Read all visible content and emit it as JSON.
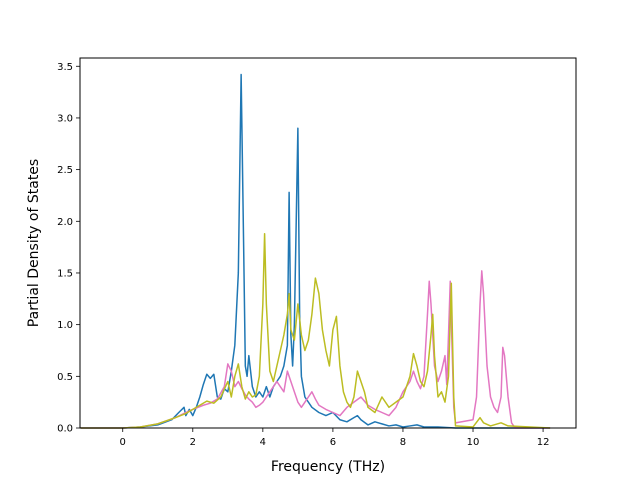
{
  "chart_data": {
    "type": "line",
    "title": "",
    "xlabel": "Frequency (THz)",
    "ylabel": "Partial Density of States",
    "xlim": [
      -1.22,
      12.94
    ],
    "ylim": [
      0,
      3.58
    ],
    "xticks": [
      0,
      2,
      4,
      6,
      8,
      10,
      12
    ],
    "yticks": [
      0.0,
      0.5,
      1.0,
      1.5,
      2.0,
      2.5,
      3.0,
      3.5
    ],
    "xtick_labels": [
      "0",
      "2",
      "4",
      "6",
      "8",
      "10",
      "12"
    ],
    "ytick_labels": [
      "0.0",
      "0.5",
      "1.0",
      "1.5",
      "2.0",
      "2.5",
      "3.0",
      "3.5"
    ],
    "grid": false,
    "legend": false,
    "series": [
      {
        "color": "#1f77b4",
        "points": [
          [
            -1.2,
            0
          ],
          [
            0.0,
            0
          ],
          [
            0.5,
            0.01
          ],
          [
            1.0,
            0.03
          ],
          [
            1.4,
            0.08
          ],
          [
            1.6,
            0.15
          ],
          [
            1.75,
            0.2
          ],
          [
            1.8,
            0.12
          ],
          [
            1.9,
            0.18
          ],
          [
            2.0,
            0.12
          ],
          [
            2.1,
            0.2
          ],
          [
            2.2,
            0.3
          ],
          [
            2.3,
            0.42
          ],
          [
            2.4,
            0.52
          ],
          [
            2.5,
            0.48
          ],
          [
            2.6,
            0.52
          ],
          [
            2.7,
            0.3
          ],
          [
            2.8,
            0.28
          ],
          [
            2.9,
            0.38
          ],
          [
            3.0,
            0.35
          ],
          [
            3.1,
            0.55
          ],
          [
            3.2,
            0.8
          ],
          [
            3.3,
            1.5
          ],
          [
            3.38,
            3.42
          ],
          [
            3.45,
            1.8
          ],
          [
            3.5,
            0.6
          ],
          [
            3.55,
            0.5
          ],
          [
            3.6,
            0.7
          ],
          [
            3.7,
            0.4
          ],
          [
            3.8,
            0.3
          ],
          [
            3.9,
            0.35
          ],
          [
            4.0,
            0.3
          ],
          [
            4.1,
            0.4
          ],
          [
            4.2,
            0.3
          ],
          [
            4.3,
            0.4
          ],
          [
            4.4,
            0.45
          ],
          [
            4.5,
            0.5
          ],
          [
            4.6,
            0.6
          ],
          [
            4.7,
            0.8
          ],
          [
            4.75,
            2.28
          ],
          [
            4.8,
            0.9
          ],
          [
            4.85,
            0.6
          ],
          [
            4.9,
            1.0
          ],
          [
            5.0,
            2.9
          ],
          [
            5.05,
            1.1
          ],
          [
            5.1,
            0.5
          ],
          [
            5.2,
            0.3
          ],
          [
            5.4,
            0.2
          ],
          [
            5.6,
            0.15
          ],
          [
            5.8,
            0.12
          ],
          [
            6.0,
            0.15
          ],
          [
            6.2,
            0.08
          ],
          [
            6.4,
            0.06
          ],
          [
            6.6,
            0.1
          ],
          [
            6.7,
            0.12
          ],
          [
            6.8,
            0.08
          ],
          [
            7.0,
            0.03
          ],
          [
            7.2,
            0.06
          ],
          [
            7.4,
            0.04
          ],
          [
            7.6,
            0.02
          ],
          [
            7.8,
            0.03
          ],
          [
            8.0,
            0.01
          ],
          [
            8.2,
            0.02
          ],
          [
            8.4,
            0.03
          ],
          [
            8.6,
            0.01
          ],
          [
            9.0,
            0.01
          ],
          [
            9.5,
            0
          ],
          [
            10.0,
            0
          ],
          [
            12.2,
            0
          ]
        ]
      },
      {
        "color": "#e377c2",
        "points": [
          [
            -1.2,
            0
          ],
          [
            0.0,
            0
          ],
          [
            0.5,
            0.01
          ],
          [
            1.0,
            0.04
          ],
          [
            1.5,
            0.1
          ],
          [
            1.8,
            0.15
          ],
          [
            2.0,
            0.18
          ],
          [
            2.3,
            0.22
          ],
          [
            2.5,
            0.24
          ],
          [
            2.7,
            0.28
          ],
          [
            2.9,
            0.4
          ],
          [
            3.0,
            0.62
          ],
          [
            3.1,
            0.55
          ],
          [
            3.2,
            0.4
          ],
          [
            3.3,
            0.45
          ],
          [
            3.4,
            0.38
          ],
          [
            3.5,
            0.32
          ],
          [
            3.6,
            0.28
          ],
          [
            3.7,
            0.25
          ],
          [
            3.8,
            0.2
          ],
          [
            3.9,
            0.22
          ],
          [
            4.0,
            0.25
          ],
          [
            4.1,
            0.3
          ],
          [
            4.2,
            0.35
          ],
          [
            4.3,
            0.4
          ],
          [
            4.4,
            0.45
          ],
          [
            4.5,
            0.4
          ],
          [
            4.6,
            0.35
          ],
          [
            4.7,
            0.55
          ],
          [
            4.8,
            0.45
          ],
          [
            4.9,
            0.35
          ],
          [
            5.0,
            0.25
          ],
          [
            5.1,
            0.2
          ],
          [
            5.2,
            0.25
          ],
          [
            5.3,
            0.3
          ],
          [
            5.4,
            0.35
          ],
          [
            5.5,
            0.28
          ],
          [
            5.6,
            0.22
          ],
          [
            5.8,
            0.18
          ],
          [
            6.0,
            0.15
          ],
          [
            6.2,
            0.12
          ],
          [
            6.4,
            0.2
          ],
          [
            6.6,
            0.25
          ],
          [
            6.8,
            0.3
          ],
          [
            7.0,
            0.22
          ],
          [
            7.2,
            0.18
          ],
          [
            7.4,
            0.15
          ],
          [
            7.6,
            0.12
          ],
          [
            7.8,
            0.2
          ],
          [
            8.0,
            0.35
          ],
          [
            8.2,
            0.45
          ],
          [
            8.3,
            0.55
          ],
          [
            8.4,
            0.45
          ],
          [
            8.5,
            0.38
          ],
          [
            8.6,
            0.5
          ],
          [
            8.7,
            1.1
          ],
          [
            8.75,
            1.42
          ],
          [
            8.8,
            1.2
          ],
          [
            8.9,
            0.6
          ],
          [
            9.0,
            0.45
          ],
          [
            9.1,
            0.55
          ],
          [
            9.2,
            0.7
          ],
          [
            9.25,
            0.42
          ],
          [
            9.3,
            0.9
          ],
          [
            9.35,
            1.42
          ],
          [
            9.4,
            0.8
          ],
          [
            9.45,
            0.2
          ],
          [
            9.5,
            0.05
          ],
          [
            10.0,
            0.08
          ],
          [
            10.1,
            0.3
          ],
          [
            10.2,
            1.2
          ],
          [
            10.25,
            1.52
          ],
          [
            10.3,
            1.3
          ],
          [
            10.4,
            0.6
          ],
          [
            10.5,
            0.3
          ],
          [
            10.6,
            0.2
          ],
          [
            10.7,
            0.15
          ],
          [
            10.8,
            0.3
          ],
          [
            10.85,
            0.78
          ],
          [
            10.9,
            0.7
          ],
          [
            11.0,
            0.3
          ],
          [
            11.1,
            0.05
          ],
          [
            11.2,
            0
          ],
          [
            12.2,
            0
          ]
        ]
      },
      {
        "color": "#bcbd22",
        "points": [
          [
            -1.2,
            0
          ],
          [
            0.0,
            0
          ],
          [
            0.5,
            0.01
          ],
          [
            1.0,
            0.04
          ],
          [
            1.5,
            0.1
          ],
          [
            1.8,
            0.14
          ],
          [
            2.0,
            0.18
          ],
          [
            2.2,
            0.22
          ],
          [
            2.4,
            0.26
          ],
          [
            2.6,
            0.24
          ],
          [
            2.8,
            0.3
          ],
          [
            3.0,
            0.45
          ],
          [
            3.1,
            0.3
          ],
          [
            3.2,
            0.5
          ],
          [
            3.3,
            0.62
          ],
          [
            3.4,
            0.4
          ],
          [
            3.5,
            0.28
          ],
          [
            3.6,
            0.35
          ],
          [
            3.7,
            0.3
          ],
          [
            3.8,
            0.32
          ],
          [
            3.9,
            0.5
          ],
          [
            4.0,
            1.2
          ],
          [
            4.05,
            1.88
          ],
          [
            4.1,
            1.2
          ],
          [
            4.2,
            0.55
          ],
          [
            4.3,
            0.45
          ],
          [
            4.4,
            0.6
          ],
          [
            4.5,
            0.75
          ],
          [
            4.6,
            0.9
          ],
          [
            4.7,
            1.1
          ],
          [
            4.75,
            1.3
          ],
          [
            4.8,
            0.95
          ],
          [
            4.9,
            0.85
          ],
          [
            5.0,
            1.2
          ],
          [
            5.1,
            0.9
          ],
          [
            5.2,
            0.75
          ],
          [
            5.3,
            0.85
          ],
          [
            5.4,
            1.1
          ],
          [
            5.5,
            1.45
          ],
          [
            5.6,
            1.3
          ],
          [
            5.7,
            0.95
          ],
          [
            5.8,
            0.75
          ],
          [
            5.9,
            0.6
          ],
          [
            6.0,
            0.95
          ],
          [
            6.1,
            1.08
          ],
          [
            6.2,
            0.6
          ],
          [
            6.3,
            0.35
          ],
          [
            6.4,
            0.25
          ],
          [
            6.5,
            0.2
          ],
          [
            6.6,
            0.3
          ],
          [
            6.7,
            0.55
          ],
          [
            6.8,
            0.45
          ],
          [
            6.9,
            0.35
          ],
          [
            7.0,
            0.2
          ],
          [
            7.2,
            0.15
          ],
          [
            7.4,
            0.3
          ],
          [
            7.6,
            0.2
          ],
          [
            7.8,
            0.25
          ],
          [
            8.0,
            0.3
          ],
          [
            8.2,
            0.5
          ],
          [
            8.3,
            0.72
          ],
          [
            8.4,
            0.6
          ],
          [
            8.5,
            0.45
          ],
          [
            8.6,
            0.4
          ],
          [
            8.7,
            0.55
          ],
          [
            8.8,
            0.9
          ],
          [
            8.85,
            1.1
          ],
          [
            8.9,
            0.7
          ],
          [
            9.0,
            0.3
          ],
          [
            9.1,
            0.35
          ],
          [
            9.2,
            0.25
          ],
          [
            9.3,
            0.5
          ],
          [
            9.38,
            1.4
          ],
          [
            9.45,
            0.3
          ],
          [
            9.5,
            0.02
          ],
          [
            10.0,
            0.01
          ],
          [
            10.2,
            0.1
          ],
          [
            10.3,
            0.05
          ],
          [
            10.5,
            0.02
          ],
          [
            10.8,
            0.05
          ],
          [
            11.0,
            0.02
          ],
          [
            12.2,
            0
          ]
        ]
      }
    ]
  }
}
